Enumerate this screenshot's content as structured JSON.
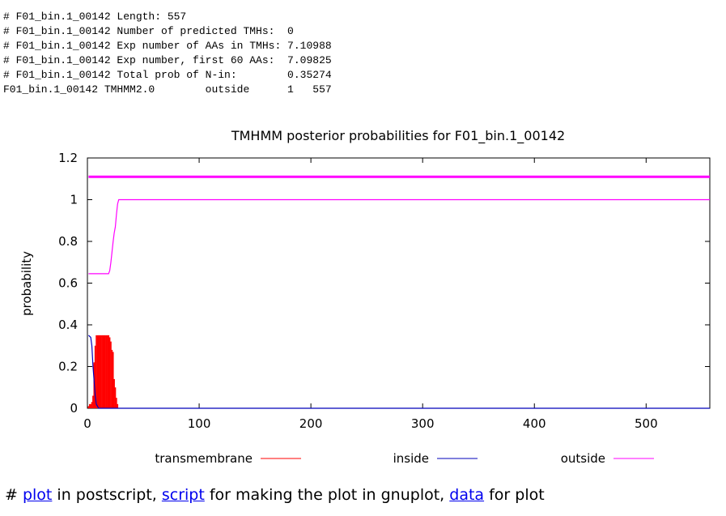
{
  "header_lines": [
    "# F01_bin.1_00142 Length: 557",
    "# F01_bin.1_00142 Number of predicted TMHs:  0",
    "# F01_bin.1_00142 Exp number of AAs in TMHs: 7.10988",
    "# F01_bin.1_00142 Exp number, first 60 AAs:  7.09825",
    "# F01_bin.1_00142 Total prob of N-in:        0.35274",
    "F01_bin.1_00142 TMHMM2.0        outside      1   557"
  ],
  "footer": {
    "hash": "# ",
    "plot_link": "plot",
    "plot_text": " in postscript, ",
    "script_link": "script",
    "script_text": " for making the plot in gnuplot, ",
    "data_link": "data",
    "data_text": " for plot"
  },
  "chart_data": {
    "type": "line",
    "title": "TMHMM posterior probabilities for F01_bin.1_00142",
    "xlabel": "",
    "ylabel": "probability",
    "xlim": [
      0,
      557
    ],
    "ylim": [
      0,
      1.2
    ],
    "x_ticks": [
      0,
      100,
      200,
      300,
      400,
      500
    ],
    "y_ticks": [
      0,
      0.2,
      0.4,
      0.6,
      0.8,
      1,
      1.2
    ],
    "y_tick_labels": [
      "0",
      "0.2",
      "0.4",
      "0.6",
      "0.8",
      "1",
      "1.2"
    ],
    "grid": false,
    "legend_position": "bottom",
    "series": [
      {
        "name": "transmembrane",
        "style": "impulses",
        "color": "#ff0000",
        "x": [
          1,
          2,
          3,
          4,
          5,
          6,
          7,
          8,
          9,
          10,
          11,
          12,
          13,
          14,
          15,
          16,
          17,
          18,
          19,
          20,
          21,
          22,
          23,
          24,
          25,
          26,
          27
        ],
        "values": [
          0.01,
          0.02,
          0.02,
          0.03,
          0.06,
          0.22,
          0.3,
          0.35,
          0.35,
          0.35,
          0.35,
          0.35,
          0.35,
          0.35,
          0.35,
          0.35,
          0.35,
          0.35,
          0.35,
          0.34,
          0.32,
          0.28,
          0.27,
          0.14,
          0.1,
          0.05,
          0.02
        ]
      },
      {
        "name": "inside",
        "style": "line",
        "color": "#0000bb",
        "x": [
          1,
          3,
          4,
          5,
          6,
          7,
          8,
          9,
          10,
          12,
          15,
          557
        ],
        "values": [
          0.35,
          0.34,
          0.3,
          0.2,
          0.13,
          0.06,
          0.02,
          0.01,
          0.0,
          0.0,
          0.0,
          0.0
        ]
      },
      {
        "name": "outside",
        "style": "line",
        "color": "#ff00ff",
        "x": [
          1,
          10,
          19,
          20,
          21,
          22,
          23,
          24,
          25,
          26,
          27,
          28,
          557
        ],
        "values": [
          0.645,
          0.645,
          0.645,
          0.66,
          0.7,
          0.75,
          0.8,
          0.84,
          0.87,
          0.93,
          0.98,
          1.0,
          1.0
        ]
      },
      {
        "name": "",
        "style": "bold-line",
        "color": "#ff00ff",
        "x": [
          1,
          557
        ],
        "values": [
          1.11,
          1.11
        ]
      }
    ]
  }
}
